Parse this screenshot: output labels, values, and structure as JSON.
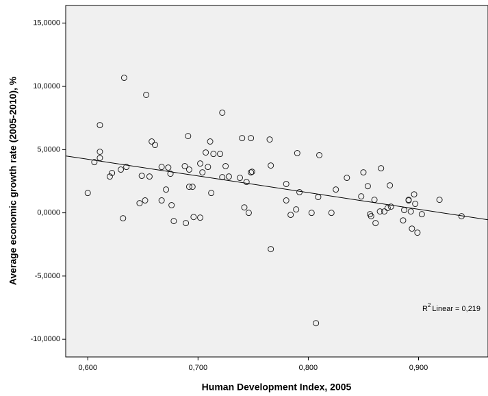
{
  "chart_data": {
    "type": "scatter",
    "x_label": "Human Development Index, 2005",
    "y_label": "Average economic growth rate (2005-2010), %",
    "xlim": [
      0.58,
      0.963
    ],
    "ylim": [
      -11.4,
      16.4
    ],
    "xticks": [
      {
        "value": 0.6,
        "label": "0,600"
      },
      {
        "value": 0.7,
        "label": "0,700"
      },
      {
        "value": 0.8,
        "label": "0,800"
      },
      {
        "value": 0.9,
        "label": "0,900"
      }
    ],
    "yticks": [
      {
        "value": -10,
        "label": "-10,0000"
      },
      {
        "value": -5,
        "label": "-5,0000"
      },
      {
        "value": 0,
        "label": "0,0000"
      },
      {
        "value": 5,
        "label": "5,0000"
      },
      {
        "value": 10,
        "label": "10,0000"
      },
      {
        "value": 15,
        "label": "15,0000"
      }
    ],
    "color": "#222222",
    "background": "#f0f0f0",
    "x": [
      0.6,
      0.606,
      0.611,
      0.611,
      0.611,
      0.62,
      0.622,
      0.63,
      0.633,
      0.632,
      0.635,
      0.647,
      0.649,
      0.652,
      0.653,
      0.656,
      0.658,
      0.661,
      0.667,
      0.667,
      0.671,
      0.673,
      0.675,
      0.676,
      0.678,
      0.688,
      0.689,
      0.691,
      0.692,
      0.692,
      0.695,
      0.696,
      0.702,
      0.702,
      0.704,
      0.707,
      0.709,
      0.711,
      0.712,
      0.714,
      0.72,
      0.722,
      0.722,
      0.725,
      0.728,
      0.738,
      0.74,
      0.742,
      0.744,
      0.746,
      0.748,
      0.748,
      0.749,
      0.765,
      0.766,
      0.766,
      0.78,
      0.78,
      0.784,
      0.789,
      0.79,
      0.792,
      0.803,
      0.807,
      0.809,
      0.81,
      0.821,
      0.825,
      0.835,
      0.848,
      0.85,
      0.854,
      0.856,
      0.857,
      0.86,
      0.861,
      0.865,
      0.866,
      0.869,
      0.872,
      0.874,
      0.875,
      0.886,
      0.887,
      0.891,
      0.891,
      0.893,
      0.894,
      0.896,
      0.897,
      0.899,
      0.903,
      0.919,
      0.939
    ],
    "values": [
      1.57,
      4.01,
      6.94,
      4.83,
      4.34,
      2.87,
      3.15,
      3.42,
      10.68,
      -0.43,
      3.63,
      0.76,
      2.93,
      0.98,
      9.33,
      2.87,
      5.64,
      5.37,
      3.63,
      0.98,
      1.84,
      3.58,
      3.09,
      0.6,
      -0.65,
      3.69,
      -0.81,
      6.07,
      3.42,
      2.06,
      2.06,
      -0.33,
      -0.38,
      3.9,
      3.2,
      4.77,
      3.63,
      5.64,
      1.57,
      4.66,
      4.66,
      7.92,
      2.82,
      3.69,
      2.87,
      2.77,
      5.91,
      0.43,
      2.44,
      0.0,
      5.91,
      3.2,
      3.25,
      5.8,
      3.74,
      -2.87,
      2.28,
      0.98,
      -0.16,
      0.27,
      4.72,
      1.63,
      0.0,
      -8.73,
      1.25,
      4.56,
      0.0,
      1.84,
      2.77,
      1.3,
      3.2,
      2.11,
      -0.11,
      -0.27,
      1.03,
      -0.81,
      0.11,
      3.52,
      0.11,
      0.38,
      2.17,
      0.49,
      -0.6,
      0.22,
      1.03,
      0.98,
      0.11,
      -1.25,
      1.46,
      0.71,
      -1.57,
      -0.11,
      1.03,
      -0.27
    ],
    "fit_line": {
      "x": [
        0.58,
        0.963
      ],
      "y": [
        4.5,
        -0.55
      ]
    },
    "fit_annotation": {
      "prefix": "R",
      "sup": "2",
      "text": "Linear = 0,219"
    }
  }
}
